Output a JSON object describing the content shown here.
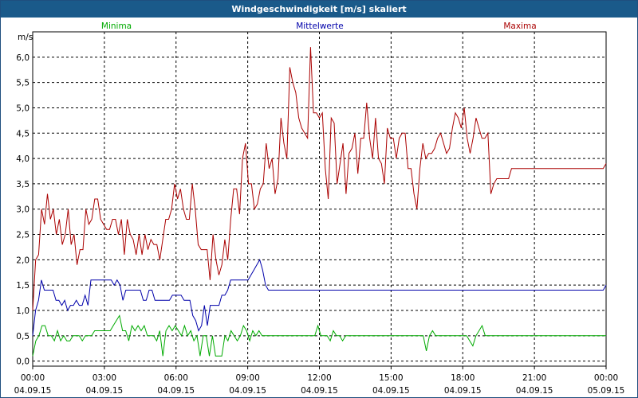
{
  "window": {
    "title": "Windgeschwindigkeit [m/s] skaliert"
  },
  "chart_data": {
    "type": "line",
    "title": "Windgeschwindigkeit [m/s] skaliert",
    "ylabel": "m/s",
    "xlabel": "",
    "ylim": [
      -0.1,
      6.5
    ],
    "xlim": [
      0,
      24
    ],
    "grid": true,
    "legend_placement": "top",
    "yticks": [
      "0,0",
      "0,5",
      "1,0",
      "1,5",
      "2,0",
      "2,5",
      "3,0",
      "3,5",
      "4,0",
      "4,5",
      "5,0",
      "5,5",
      "6,0"
    ],
    "ytick_values": [
      0,
      0.5,
      1,
      1.5,
      2,
      2.5,
      3,
      3.5,
      4,
      4.5,
      5,
      5.5,
      6
    ],
    "xticks": [
      {
        "time": "00:00",
        "date": "04.09.15"
      },
      {
        "time": "03:00",
        "date": "04.09.15"
      },
      {
        "time": "06:00",
        "date": "04.09.15"
      },
      {
        "time": "09:00",
        "date": "04.09.15"
      },
      {
        "time": "12:00",
        "date": "04.09.15"
      },
      {
        "time": "15:00",
        "date": "04.09.15"
      },
      {
        "time": "18:00",
        "date": "04.09.15"
      },
      {
        "time": "21:00",
        "date": "04.09.15"
      },
      {
        "time": "00:00",
        "date": "05.09.15"
      }
    ],
    "xtick_hours": [
      0,
      3,
      6,
      9,
      12,
      15,
      18,
      21,
      24
    ],
    "series": [
      {
        "name": "Minima",
        "color": "#00aa00",
        "values": [
          0.1,
          0.4,
          0.5,
          0.7,
          0.7,
          0.5,
          0.5,
          0.4,
          0.6,
          0.4,
          0.5,
          0.4,
          0.4,
          0.5,
          0.5,
          0.5,
          0.4,
          0.5,
          0.5,
          0.5,
          0.6,
          0.6,
          0.6,
          0.6,
          0.6,
          0.6,
          0.7,
          0.8,
          0.9,
          0.6,
          0.6,
          0.4,
          0.7,
          0.6,
          0.7,
          0.6,
          0.7,
          0.5,
          0.5,
          0.5,
          0.4,
          0.6,
          0.1,
          0.6,
          0.7,
          0.6,
          0.7,
          0.6,
          0.5,
          0.7,
          0.5,
          0.6,
          0.4,
          0.5,
          0.1,
          0.5,
          0.5,
          0.1,
          0.5,
          0.1,
          0.1,
          0.1,
          0.5,
          0.4,
          0.6,
          0.5,
          0.4,
          0.5,
          0.7,
          0.6,
          0.4,
          0.6,
          0.5,
          0.6,
          0.5,
          0.5,
          0.5,
          0.5,
          0.5,
          0.5,
          0.5,
          0.5,
          0.5,
          0.5,
          0.5,
          0.5,
          0.5,
          0.5,
          0.5,
          0.5,
          0.5,
          0.5,
          0.7,
          0.5,
          0.5,
          0.5,
          0.4,
          0.6,
          0.5,
          0.5,
          0.4,
          0.5,
          0.5,
          0.5,
          0.5,
          0.5,
          0.5,
          0.5,
          0.5,
          0.5,
          0.5,
          0.5,
          0.5,
          0.5,
          0.5,
          0.5,
          0.5,
          0.5,
          0.5,
          0.5,
          0.5,
          0.5,
          0.5,
          0.5,
          0.5,
          0.5,
          0.5,
          0.2,
          0.5,
          0.6,
          0.5,
          0.5,
          0.5,
          0.5,
          0.5,
          0.5,
          0.5,
          0.5,
          0.5,
          0.5,
          0.5,
          0.4,
          0.3,
          0.5,
          0.6,
          0.7,
          0.5,
          0.5,
          0.5,
          0.5,
          0.5,
          0.5,
          0.5,
          0.5,
          0.5,
          0.5,
          0.5,
          0.5,
          0.5,
          0.5,
          0.5,
          0.5,
          0.5,
          0.5,
          0.5,
          0.5,
          0.5,
          0.5,
          0.5,
          0.5,
          0.5,
          0.5,
          0.5,
          0.5,
          0.5,
          0.5,
          0.5,
          0.5,
          0.5,
          0.5,
          0.5,
          0.5,
          0.5,
          0.5,
          0.5,
          0.5
        ]
      },
      {
        "name": "Mittelwerte",
        "color": "#0000aa",
        "values": [
          0.5,
          1.0,
          1.2,
          1.6,
          1.4,
          1.4,
          1.4,
          1.4,
          1.2,
          1.2,
          1.1,
          1.2,
          1.0,
          1.1,
          1.1,
          1.2,
          1.1,
          1.1,
          1.3,
          1.1,
          1.6,
          1.6,
          1.6,
          1.6,
          1.6,
          1.6,
          1.6,
          1.6,
          1.5,
          1.6,
          1.5,
          1.2,
          1.4,
          1.4,
          1.4,
          1.4,
          1.4,
          1.4,
          1.2,
          1.2,
          1.4,
          1.4,
          1.2,
          1.2,
          1.2,
          1.2,
          1.2,
          1.2,
          1.3,
          1.3,
          1.3,
          1.3,
          1.2,
          1.2,
          1.2,
          0.9,
          0.8,
          0.6,
          0.7,
          1.1,
          0.7,
          1.1,
          1.1,
          1.1,
          1.1,
          1.3,
          1.3,
          1.4,
          1.6,
          1.6,
          1.6,
          1.6,
          1.6,
          1.6,
          1.6,
          1.7,
          1.8,
          1.9,
          2.0,
          1.8,
          1.5,
          1.4,
          1.4,
          1.4,
          1.4,
          1.4,
          1.4,
          1.4,
          1.4,
          1.4,
          1.4,
          1.4,
          1.4,
          1.4,
          1.4,
          1.4,
          1.4,
          1.4,
          1.4,
          1.4,
          1.4,
          1.4,
          1.4,
          1.4,
          1.4,
          1.4,
          1.4,
          1.4,
          1.4,
          1.4,
          1.4,
          1.4,
          1.4,
          1.4,
          1.4,
          1.4,
          1.4,
          1.4,
          1.4,
          1.4,
          1.4,
          1.4,
          1.4,
          1.4,
          1.4,
          1.4,
          1.4,
          1.4,
          1.4,
          1.4,
          1.4,
          1.4,
          1.4,
          1.4,
          1.4,
          1.4,
          1.4,
          1.4,
          1.4,
          1.4,
          1.4,
          1.4,
          1.4,
          1.4,
          1.4,
          1.4,
          1.4,
          1.4,
          1.4,
          1.4,
          1.4,
          1.4,
          1.4,
          1.4,
          1.4,
          1.4,
          1.4,
          1.4,
          1.4,
          1.4,
          1.4,
          1.4,
          1.4,
          1.4,
          1.4,
          1.4,
          1.4,
          1.4,
          1.4,
          1.4,
          1.4,
          1.4,
          1.4,
          1.4,
          1.4,
          1.4,
          1.4,
          1.4,
          1.4,
          1.4,
          1.4,
          1.4,
          1.4,
          1.4,
          1.4,
          1.4,
          1.4,
          1.4,
          1.4,
          1.4,
          1.4,
          1.4,
          1.4,
          1.4,
          1.4,
          1.4,
          1.4,
          1.5
        ]
      },
      {
        "name": "Maxima",
        "color": "#aa0000",
        "values": [
          1.0,
          2.0,
          2.1,
          3.0,
          2.7,
          3.3,
          2.8,
          3.0,
          2.5,
          2.8,
          2.3,
          2.5,
          3.0,
          2.3,
          2.5,
          1.9,
          2.2,
          2.2,
          3.0,
          2.7,
          2.8,
          3.2,
          3.2,
          2.8,
          2.7,
          2.6,
          2.6,
          2.8,
          2.8,
          2.5,
          2.8,
          2.1,
          2.8,
          2.5,
          2.4,
          2.1,
          2.5,
          2.1,
          2.5,
          2.2,
          2.4,
          2.3,
          2.3,
          2.0,
          2.4,
          2.8,
          2.8,
          3.0,
          3.5,
          3.2,
          3.4,
          3.0,
          2.8,
          2.8,
          3.5,
          3.0,
          2.3,
          2.2,
          2.2,
          2.2,
          1.6,
          2.5,
          2.0,
          1.7,
          1.9,
          2.4,
          2.0,
          2.8,
          3.4,
          3.4,
          2.9,
          4.0,
          4.3,
          3.5,
          3.5,
          3.0,
          3.1,
          3.4,
          3.5,
          4.3,
          3.8,
          4.0,
          3.3,
          3.6,
          4.8,
          4.3,
          4.0,
          5.8,
          5.5,
          5.3,
          4.8,
          4.6,
          4.5,
          4.4,
          6.2,
          4.9,
          4.9,
          4.8,
          4.9,
          3.8,
          3.2,
          4.8,
          4.7,
          3.5,
          3.9,
          4.3,
          3.3,
          4.1,
          4.2,
          4.5,
          3.7,
          4.4,
          4.4,
          5.1,
          4.4,
          4.0,
          4.8,
          4.0,
          3.9,
          3.5,
          4.6,
          4.4,
          4.4,
          4.0,
          4.4,
          4.5,
          4.5,
          3.8,
          3.8,
          3.3,
          3.0,
          3.8,
          4.3,
          4.0,
          4.1,
          4.1,
          4.2,
          4.4,
          4.5,
          4.3,
          4.1,
          4.2,
          4.6,
          4.9,
          4.8,
          4.6,
          5.0,
          4.4,
          4.1,
          4.4,
          4.8,
          4.6,
          4.4,
          4.4,
          4.5,
          3.3,
          3.5,
          3.6,
          3.6,
          3.6,
          3.6,
          3.6,
          3.8,
          3.8,
          3.8,
          3.8,
          3.8,
          3.8,
          3.8,
          3.8,
          3.8,
          3.8,
          3.8,
          3.8,
          3.8,
          3.8,
          3.8,
          3.8,
          3.8,
          3.8,
          3.8,
          3.8,
          3.8,
          3.8,
          3.8,
          3.8,
          3.8,
          3.8,
          3.8,
          3.8,
          3.8,
          3.8,
          3.8,
          3.8,
          3.9
        ]
      }
    ]
  }
}
